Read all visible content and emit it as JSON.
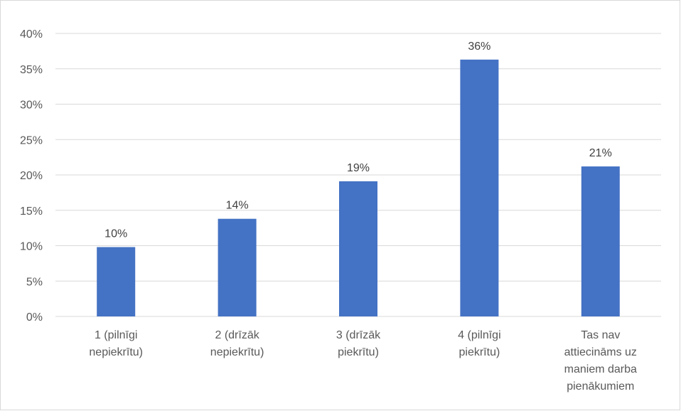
{
  "chart_data": {
    "type": "bar",
    "categories": [
      [
        "1 (pilnīgi",
        "nepiekrītu)"
      ],
      [
        "2 (drīzāk",
        "nepiekrītu)"
      ],
      [
        "3 (drīzāk",
        "piekrītu)"
      ],
      [
        "4 (pilnīgi",
        "piekrītu)"
      ],
      [
        "Tas nav",
        "attiecināms uz",
        "maniem darba",
        "pienākumiem"
      ]
    ],
    "values": [
      9.8,
      13.8,
      19.1,
      36.3,
      21.2
    ],
    "data_labels": [
      "10%",
      "14%",
      "19%",
      "36%",
      "21%"
    ],
    "yticks": [
      "0%",
      "5%",
      "10%",
      "15%",
      "20%",
      "25%",
      "30%",
      "35%",
      "40%"
    ],
    "ylim": [
      0,
      40
    ],
    "grid": true,
    "legend": "none",
    "bar_color": "#4472C4",
    "gridline_color": "#d9d9d9",
    "title": "",
    "xlabel": "",
    "ylabel": ""
  }
}
